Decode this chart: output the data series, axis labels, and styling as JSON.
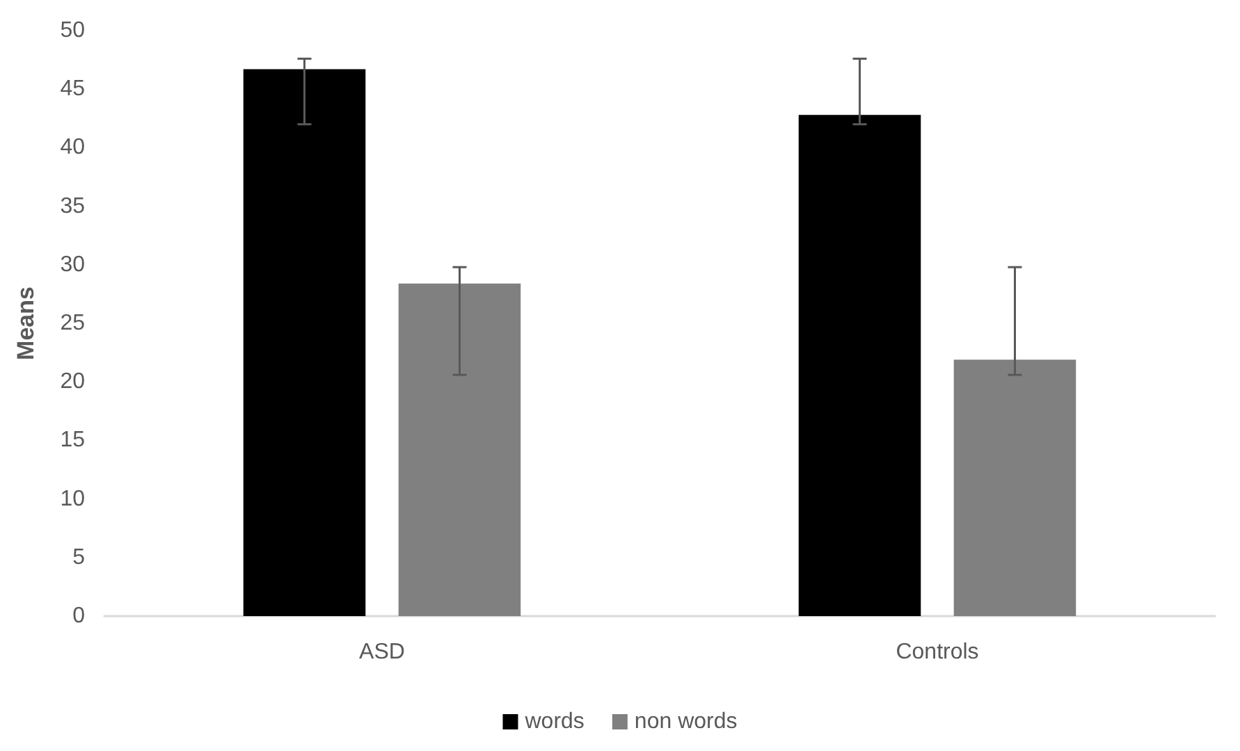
{
  "chart_data": {
    "type": "bar",
    "ylabel": "Means",
    "categories": [
      "ASD",
      "Controls"
    ],
    "series": [
      {
        "name": "words",
        "color": "#000000",
        "values": [
          46.7,
          42.8
        ],
        "errors": [
          [
            42.0,
            47.6
          ],
          [
            42.0,
            47.6
          ]
        ]
      },
      {
        "name": "non words",
        "color": "#808080",
        "values": [
          28.4,
          21.9
        ],
        "errors": [
          [
            20.6,
            29.8
          ],
          [
            20.6,
            29.8
          ]
        ]
      }
    ],
    "ylim": [
      0,
      50
    ],
    "yticks": [
      0,
      5,
      10,
      15,
      20,
      25,
      30,
      35,
      40,
      45,
      50
    ],
    "grid": false,
    "legend": "bottom"
  }
}
